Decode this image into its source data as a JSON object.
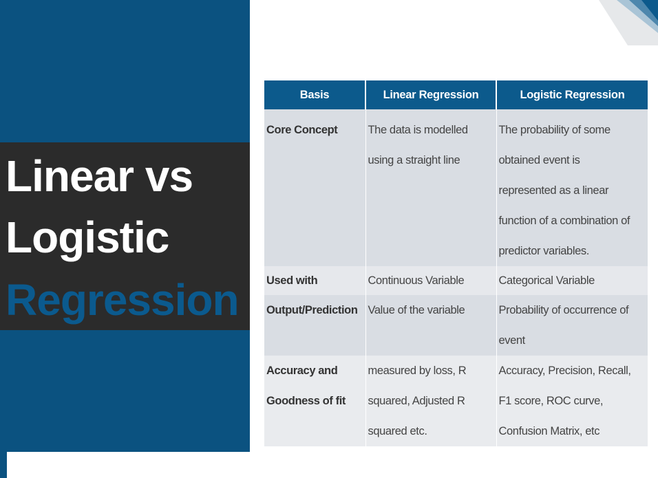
{
  "title": {
    "line1": "Linear vs",
    "line2": "Logistic",
    "line3": "Regression"
  },
  "colors": {
    "panel": "#0b5280",
    "band": "#2b2b2b",
    "accent": "#0b5a8e",
    "header": "#0c5a8c"
  },
  "table": {
    "headers": [
      "Basis",
      "Linear Regression",
      "Logistic Regression"
    ],
    "rows": [
      {
        "basis": [
          "Core Concept"
        ],
        "linear": [
          "The data is modelled",
          "using a straight line"
        ],
        "logistic": [
          "The probability of some",
          "obtained event is",
          "represented as a linear",
          "function of a combination of",
          "predictor variables."
        ]
      },
      {
        "basis": [
          "Used with"
        ],
        "linear": [
          "Continuous Variable"
        ],
        "logistic": [
          "Categorical Variable"
        ]
      },
      {
        "basis": [
          "Output/Prediction"
        ],
        "linear": [
          "Value of the variable"
        ],
        "logistic": [
          "Probability of occurrence of",
          "event"
        ]
      },
      {
        "basis": [
          "Accuracy and",
          "Goodness of fit"
        ],
        "linear": [
          "measured by loss, R",
          "squared, Adjusted R",
          "squared etc."
        ],
        "logistic": [
          "Accuracy, Precision, Recall,",
          "F1 score, ROC curve,",
          "Confusion Matrix, etc"
        ]
      }
    ]
  }
}
